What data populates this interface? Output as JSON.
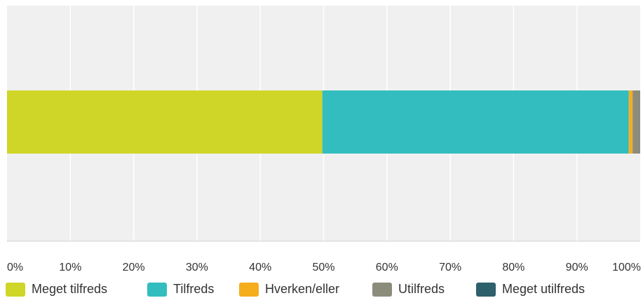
{
  "chart_data": {
    "type": "bar",
    "orientation": "horizontal",
    "stacked": true,
    "categories": [
      ""
    ],
    "series": [
      {
        "name": "Meget tilfreds",
        "values": [
          49.8
        ],
        "color": "#cfd628"
      },
      {
        "name": "Tilfreds",
        "values": [
          48.4
        ],
        "color": "#33bdbf"
      },
      {
        "name": "Hverken/eller",
        "values": [
          0.6
        ],
        "color": "#f5ad1e"
      },
      {
        "name": "Utilfreds",
        "values": [
          1.2
        ],
        "color": "#8c8c7c"
      },
      {
        "name": "Meget utilfreds",
        "values": [
          0
        ],
        "color": "#2e606b"
      }
    ],
    "xlim": [
      0,
      100
    ],
    "xticks": [
      "0%",
      "10%",
      "20%",
      "30%",
      "40%",
      "50%",
      "60%",
      "70%",
      "80%",
      "90%",
      "100%"
    ],
    "grid": true,
    "legend": "bottom",
    "colors": {
      "plot_background": "#f0f0f0",
      "grid": "#ffffff",
      "axis": "#d0d0d0"
    }
  }
}
